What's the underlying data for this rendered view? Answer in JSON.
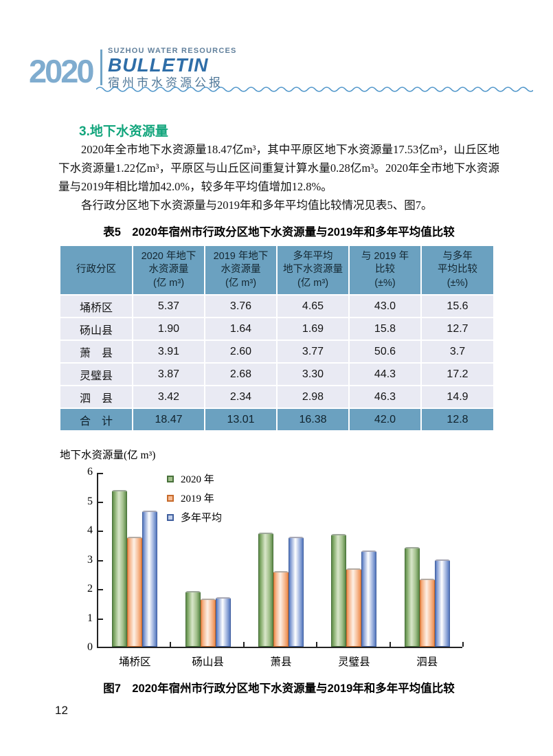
{
  "page": {
    "number": "12"
  },
  "header": {
    "year": "2020",
    "subtitle_en": "SUZHOU WATER RESOURCES",
    "title_en": "BULLETIN",
    "title_zh": "宿州市水资源公报",
    "colors": {
      "year_blue": "#7FACCF",
      "title_blue": "#2F6EA8",
      "wave_blue": "#4D94C9"
    }
  },
  "section": {
    "heading": "3.地下水资源量",
    "heading_color": "#12A57C",
    "para1": "2020年全市地下水资源量18.47亿m³，其中平原区地下水资源量17.53亿m³，山丘区地下水资源量1.22亿m³，平原区与山丘区间重复计算水量0.28亿m³。2020年全市地下水资源量与2019年相比增加42.0%，较多年平均值增加12.8%。",
    "para2": "各行政分区地下水资源量与2019年和多年平均值比较情况见表5、图7。"
  },
  "table": {
    "caption": "表5　2020年宿州市行政分区地下水资源量与2019年和多年平均值比较",
    "header_bg": "#6BA1C0",
    "row_bg": "#E9EAF3",
    "headers": [
      "行政分区",
      "2020 年地下\n水资源量\n(亿 m³)",
      "2019 年地下\n水资源量\n(亿 m³)",
      "多年平均\n地下水资源量\n(亿 m³)",
      "与 2019 年\n比较\n(±%)",
      "与多年\n平均比较\n(±%)"
    ],
    "rows": [
      [
        "埇桥区",
        "5.37",
        "3.76",
        "4.65",
        "43.0",
        "15.6"
      ],
      [
        "砀山县",
        "1.90",
        "1.64",
        "1.69",
        "15.8",
        "12.7"
      ],
      [
        "萧　县",
        "3.91",
        "2.60",
        "3.77",
        "50.6",
        "3.7"
      ],
      [
        "灵璧县",
        "3.87",
        "2.68",
        "3.30",
        "44.3",
        "17.2"
      ],
      [
        "泗　县",
        "3.42",
        "2.34",
        "2.98",
        "46.3",
        "14.9"
      ]
    ],
    "total_row": [
      "合　计",
      "18.47",
      "13.01",
      "16.38",
      "42.0",
      "12.8"
    ]
  },
  "chart_data": {
    "type": "bar",
    "title": "图7　2020年宿州市行政分区地下水资源量与2019年和多年平均值比较",
    "ylabel": "地下水资源量(亿 m³)",
    "xlabel": "",
    "categories": [
      "埇桥区",
      "砀山县",
      "萧县",
      "灵璧县",
      "泗县"
    ],
    "series": [
      {
        "name": "2020 年",
        "color": "#A3C18D",
        "values": [
          5.37,
          1.9,
          3.91,
          3.87,
          3.42
        ]
      },
      {
        "name": "2019 年",
        "color": "#F7BD96",
        "values": [
          3.76,
          1.64,
          2.6,
          2.68,
          2.34
        ]
      },
      {
        "name": "多年平均",
        "color": "#C3D0EA",
        "values": [
          4.65,
          1.69,
          3.77,
          3.3,
          2.98
        ]
      }
    ],
    "ylim": [
      0,
      6
    ],
    "yticks": [
      0,
      1,
      2,
      3,
      4,
      5,
      6
    ],
    "grid": false,
    "legend_position": "top-left-inside"
  },
  "figure": {
    "caption": "图7　2020年宿州市行政分区地下水资源量与2019年和多年平均值比较"
  }
}
